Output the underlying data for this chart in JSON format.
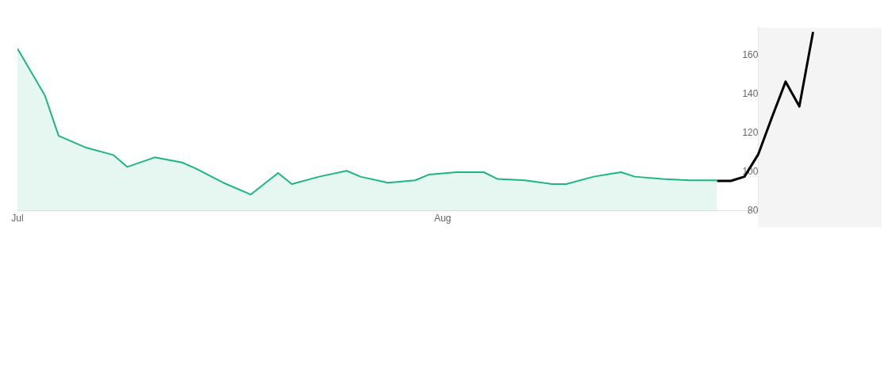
{
  "chart_data": {
    "type": "line",
    "series": [
      {
        "type": "area",
        "color": "#1db77f",
        "x": [
          "--07-01",
          "--07-03",
          "--07-04",
          "--07-06",
          "--07-08",
          "--07-09",
          "--07-11",
          "--07-13",
          "--07-14",
          "--07-16",
          "--07-18",
          "--07-20",
          "--07-21",
          "--07-23",
          "--07-25",
          "--07-26",
          "--07-28",
          "--07-30",
          "--07-31",
          "--08-02",
          "--08-04",
          "--08-05",
          "--08-07",
          "--08-09",
          "--08-10",
          "--08-12",
          "--08-14",
          "--08-15",
          "--08-17",
          "--08-19",
          "--08-21"
        ],
        "values": [
          163.4,
          139.3,
          118.6,
          112.5,
          108.7,
          102.6,
          107.5,
          104.9,
          101.8,
          94.5,
          88.4,
          99.5,
          93.8,
          97.6,
          100.6,
          97.6,
          94.5,
          95.7,
          98.7,
          99.9,
          99.9,
          96.4,
          95.7,
          93.8,
          93.8,
          97.6,
          99.9,
          97.6,
          96.4,
          95.7,
          95.7
        ]
      },
      {
        "type": "line",
        "color": "#000000",
        "x": [
          "--08-21",
          "--08-22",
          "--08-23",
          "--08-24",
          "--08-25",
          "--08-26",
          "--08-27",
          "--08-28"
        ],
        "values": [
          95.4,
          95.4,
          97.6,
          109,
          128,
          146.4,
          133.7,
          171.9
        ]
      }
    ],
    "xlim": [
      "--07-01",
      "--09-02"
    ],
    "xticks": [
      {
        "value": "--07-01",
        "label": "Jul"
      },
      {
        "value": "--08-01",
        "label": "Aug"
      }
    ],
    "ylim": [
      80,
      174
    ],
    "yticks": [
      80,
      100,
      120,
      140,
      160
    ],
    "bands": [
      {
        "axis": "x",
        "from": "--08-24",
        "to": "--09-02",
        "color": "#f4f4f4"
      }
    ],
    "grid": false,
    "legend": false
  }
}
